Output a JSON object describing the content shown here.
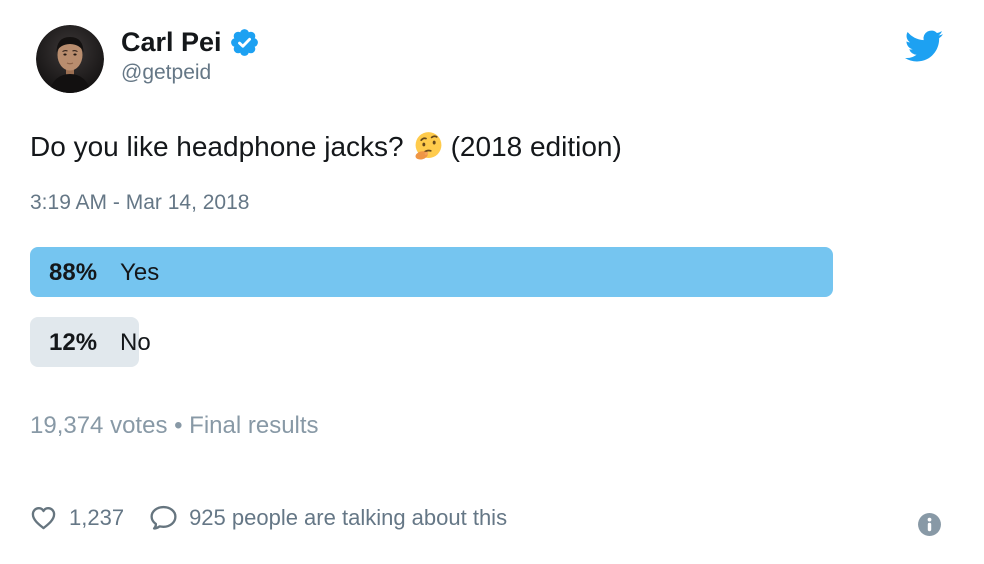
{
  "header": {
    "name": "Carl Pei",
    "handle": "@getpeid"
  },
  "tweet": {
    "text_before_emoji": "Do you like headphone jacks?",
    "emoji": "🤔",
    "text_after_emoji": "(2018 edition)",
    "timestamp": "3:19 AM - Mar 14, 2018"
  },
  "chart_data": {
    "type": "bar",
    "title": "Do you like headphone jacks? (2018 edition)",
    "categories": [
      "Yes",
      "No"
    ],
    "values": [
      88,
      12
    ],
    "unit": "%",
    "total_votes": "19,374",
    "status": "Final results"
  },
  "poll": {
    "options": [
      {
        "percent_label": "88%",
        "label": "Yes",
        "value": 88,
        "bar_color": "#75C5F0"
      },
      {
        "percent_label": "12%",
        "label": "No",
        "value": 12,
        "bar_color": "#E1E8ED"
      }
    ],
    "summary": "19,374 votes • Final results"
  },
  "footer": {
    "likes_count": "1,237",
    "conversation_text": "925 people are talking about this"
  },
  "colors": {
    "brand_blue": "#1DA1F2",
    "poll_yes_blue": "#75C5F0",
    "poll_no_gray": "#E1E8ED",
    "text_dark": "#14171A",
    "text_gray": "#657786",
    "text_light_gray": "#8899A6"
  }
}
